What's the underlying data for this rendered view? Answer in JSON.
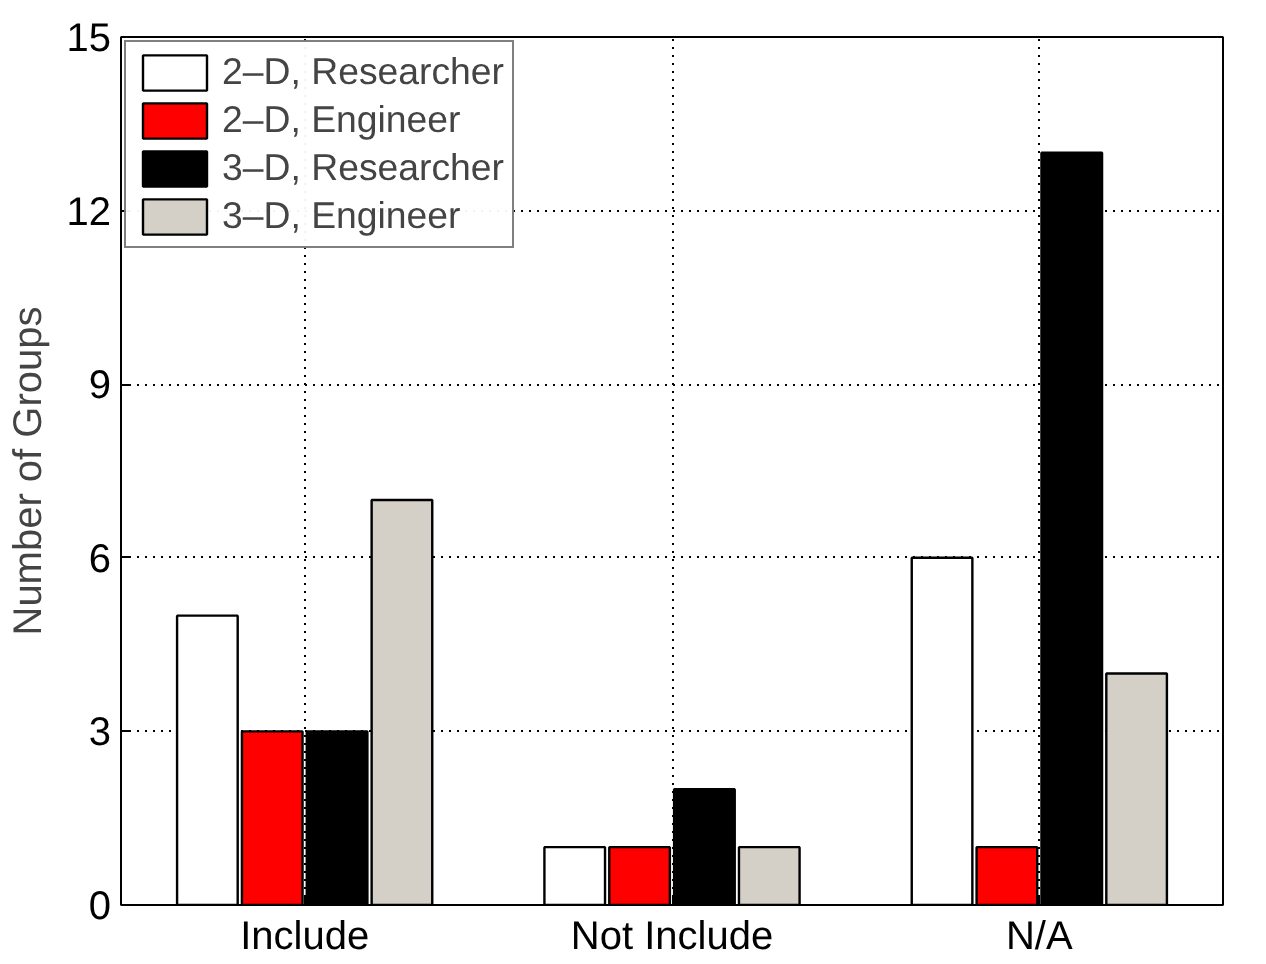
{
  "chart_data": {
    "type": "bar",
    "ylabel": "Number of Groups",
    "categories": [
      "Include",
      "Not Include",
      "N/A"
    ],
    "series": [
      {
        "name": "2–D, Researcher",
        "color": "#ffffff",
        "values": [
          5,
          1,
          6
        ]
      },
      {
        "name": "2–D, Engineer",
        "color": "#ff0000",
        "values": [
          3,
          1,
          1
        ]
      },
      {
        "name": "3–D, Researcher",
        "color": "#000000",
        "values": [
          3,
          2,
          13
        ]
      },
      {
        "name": "3–D, Engineer",
        "color": "#d4d0c8",
        "values": [
          7,
          1,
          4
        ]
      }
    ],
    "ylim": [
      0,
      15
    ],
    "yticks": [
      0,
      3,
      6,
      9,
      12,
      15
    ],
    "grid": true,
    "legend": "top left"
  }
}
